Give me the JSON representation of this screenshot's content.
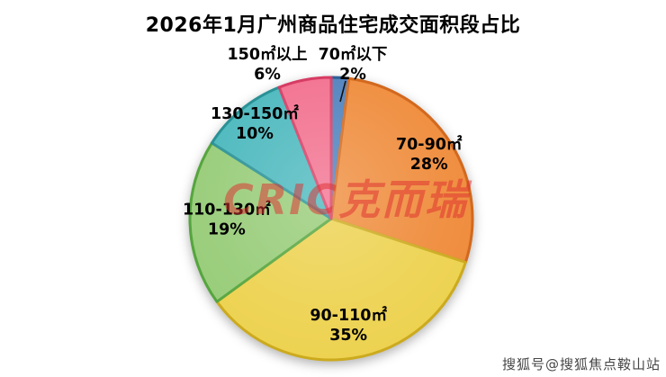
{
  "title": "2026年1月广州商品住宅成交面积段占比",
  "watermark": "CRIC克而瑞",
  "source_credit": "搜狐号@搜狐焦点鞍山站",
  "chart_data": {
    "type": "pie",
    "title": "2026年1月广州商品住宅成交面积段占比",
    "start_angle_deg": -90,
    "direction": "clockwise",
    "legend_position": "none",
    "labels_on_slices": true,
    "slices": [
      {
        "label": "70㎡以下",
        "value": 2,
        "pct_label": "2%",
        "fill": "#4f81bd",
        "stroke": "#2e5f96",
        "label_inside": false
      },
      {
        "label": "70-90㎡",
        "value": 28,
        "pct_label": "28%",
        "fill": "#ef8b3a",
        "stroke": "#d2691f",
        "label_inside": true
      },
      {
        "label": "90-110㎡",
        "value": 35,
        "pct_label": "35%",
        "fill": "#edd24f",
        "stroke": "#ccaa1e",
        "label_inside": true
      },
      {
        "label": "110-130㎡",
        "value": 19,
        "pct_label": "19%",
        "fill": "#97cc78",
        "stroke": "#55a53e",
        "label_inside": true
      },
      {
        "label": "130-150㎡",
        "value": 10,
        "pct_label": "10%",
        "fill": "#4ab8bd",
        "stroke": "#2a9196",
        "label_inside": true
      },
      {
        "label": "150㎡以上",
        "value": 6,
        "pct_label": "6%",
        "fill": "#f26f8e",
        "stroke": "#d63c64",
        "label_inside": false
      }
    ]
  }
}
